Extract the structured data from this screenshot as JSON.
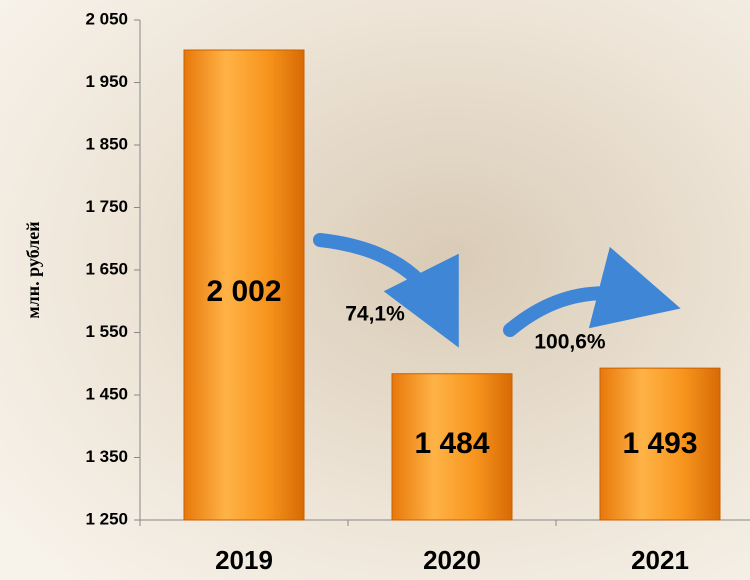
{
  "chart_data": {
    "type": "bar",
    "y_label": "млн. рублей",
    "categories": [
      "2019",
      "2020",
      "2021"
    ],
    "values": [
      2002,
      1484,
      1493
    ],
    "value_labels": [
      "2 002",
      "1 484",
      "1 493"
    ],
    "color": "#f7941d",
    "ylim": [
      1250,
      2050
    ],
    "yticks": [
      {
        "value": 1250,
        "label": "1 250"
      },
      {
        "value": 1350,
        "label": "1 350"
      },
      {
        "value": 1450,
        "label": "1 450"
      },
      {
        "value": 1550,
        "label": "1 550"
      },
      {
        "value": 1650,
        "label": "1 650"
      },
      {
        "value": 1750,
        "label": "1 750"
      },
      {
        "value": 1850,
        "label": "1 850"
      },
      {
        "value": 1950,
        "label": "1 950"
      },
      {
        "value": 2050,
        "label": "2 050"
      }
    ],
    "annotations": [
      "74,1%",
      "100,6%"
    ]
  }
}
